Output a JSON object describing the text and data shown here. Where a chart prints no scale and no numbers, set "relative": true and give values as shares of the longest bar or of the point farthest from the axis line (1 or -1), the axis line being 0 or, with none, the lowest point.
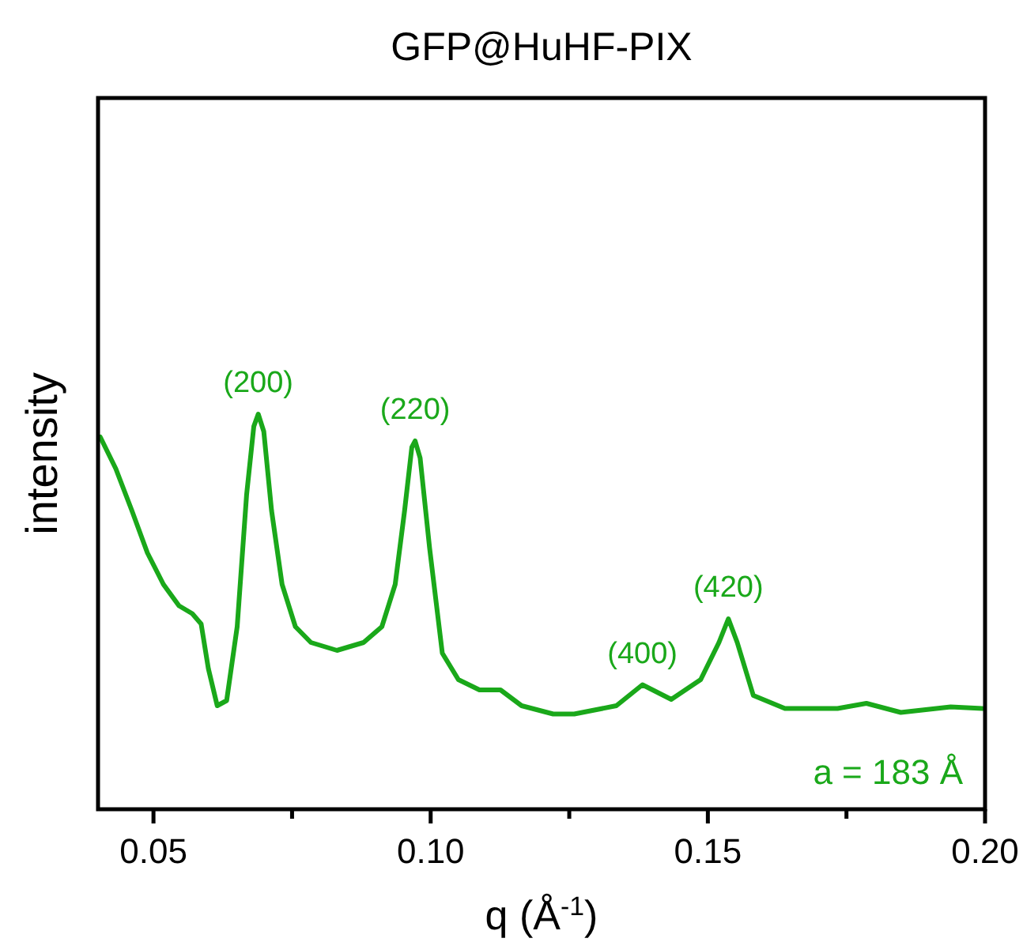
{
  "chart_data": {
    "type": "line",
    "title": "GFP@HuHF-PIX",
    "xlabel": "q (Å$^{-1}$)",
    "ylabel": "intensity",
    "relative": true,
    "xlim": [
      0.04,
      0.2
    ],
    "xticks": [
      {
        "value": 0.05,
        "label": "0.05"
      },
      {
        "value": 0.075,
        "label": null
      },
      {
        "value": 0.1,
        "label": "0.10"
      },
      {
        "value": 0.125,
        "label": null
      },
      {
        "value": 0.15,
        "label": "0.15"
      },
      {
        "value": 0.175,
        "label": null
      },
      {
        "value": 0.2,
        "label": "0.20"
      }
    ],
    "tick_labels": "x",
    "grid": false,
    "marker": "none",
    "line_style": "solid",
    "series": [
      {
        "color": "#1aa81a",
        "x": [
          0.0404,
          0.0432,
          0.0461,
          0.0489,
          0.0518,
          0.0546,
          0.057,
          0.0586,
          0.0599,
          0.0615,
          0.0632,
          0.0651,
          0.0668,
          0.0681,
          0.0689,
          0.0699,
          0.0713,
          0.0732,
          0.0756,
          0.0784,
          0.0831,
          0.0879,
          0.0912,
          0.0936,
          0.0953,
          0.0966,
          0.0972,
          0.0981,
          0.0998,
          0.1021,
          0.105,
          0.1088,
          0.1126,
          0.1164,
          0.1221,
          0.1259,
          0.1335,
          0.1382,
          0.1434,
          0.1487,
          0.152,
          0.1537,
          0.1553,
          0.1582,
          0.1639,
          0.1734,
          0.1786,
          0.1848,
          0.1938,
          0.1995
        ],
        "values": [
          0.942,
          0.862,
          0.756,
          0.649,
          0.569,
          0.515,
          0.495,
          0.469,
          0.356,
          0.262,
          0.275,
          0.462,
          0.796,
          0.969,
          1.0,
          0.956,
          0.756,
          0.569,
          0.462,
          0.422,
          0.402,
          0.422,
          0.462,
          0.569,
          0.756,
          0.916,
          0.932,
          0.889,
          0.662,
          0.395,
          0.328,
          0.302,
          0.302,
          0.262,
          0.241,
          0.241,
          0.262,
          0.315,
          0.278,
          0.328,
          0.422,
          0.482,
          0.422,
          0.288,
          0.255,
          0.255,
          0.268,
          0.245,
          0.259,
          0.255
        ]
      }
    ],
    "annotations": [
      {
        "text": "(200)",
        "x": 0.0689,
        "y": 1.0
      },
      {
        "text": "(220)",
        "x": 0.0972,
        "y": 0.932
      },
      {
        "text": "(400)",
        "x": 0.1382,
        "y": 0.315
      },
      {
        "text": "(420)",
        "x": 0.1537,
        "y": 0.482
      },
      "a = 183 Å"
    ]
  }
}
